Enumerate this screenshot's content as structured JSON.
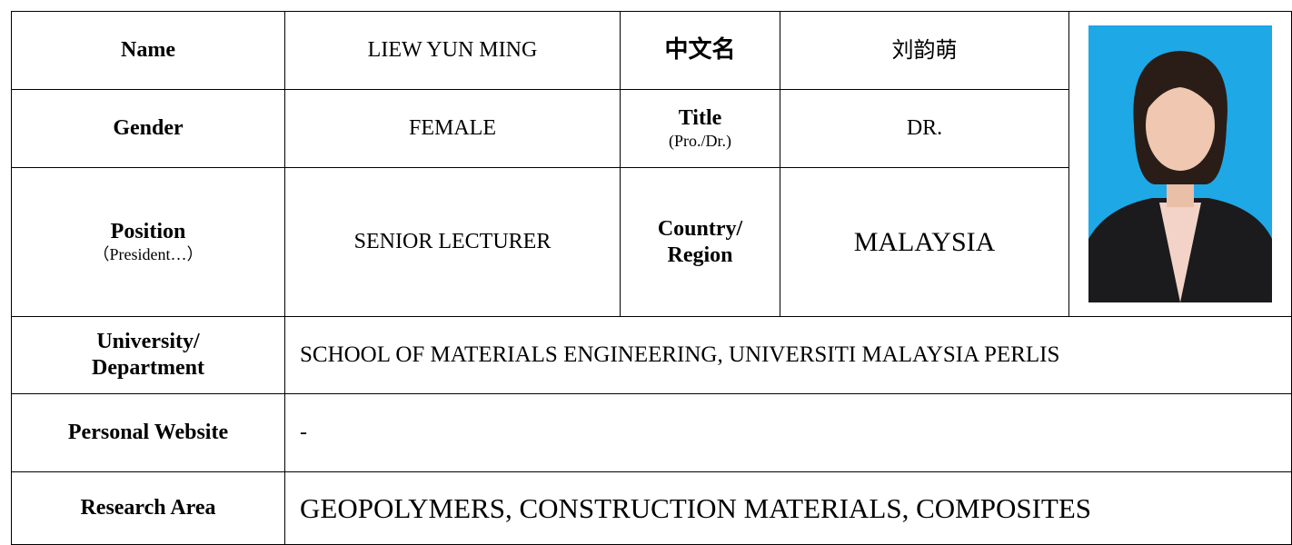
{
  "table": {
    "rows": [
      {
        "label": "Name",
        "value": "LIEW YUN MING",
        "label2": "中文名",
        "value2": "刘韵萌"
      },
      {
        "label": "Gender",
        "value": "FEMALE",
        "label2": "Title",
        "label2_note": "(Pro./Dr.)",
        "value2": "DR."
      },
      {
        "label": "Position",
        "label_note": "（President…）",
        "value": "SENIOR LECTURER",
        "label2": [
          "Country/",
          "Region"
        ],
        "value2": "MALAYSIA"
      },
      {
        "label": [
          "University/",
          "Department"
        ],
        "value": "SCHOOL OF MATERIALS ENGINEERING, UNIVERSITI MALAYSIA PERLIS"
      },
      {
        "label": "Personal Website",
        "value": "-"
      },
      {
        "label": "Research Area",
        "value": "GEOPOLYMERS, CONSTRUCTION MATERIALS, COMPOSITES"
      }
    ]
  }
}
